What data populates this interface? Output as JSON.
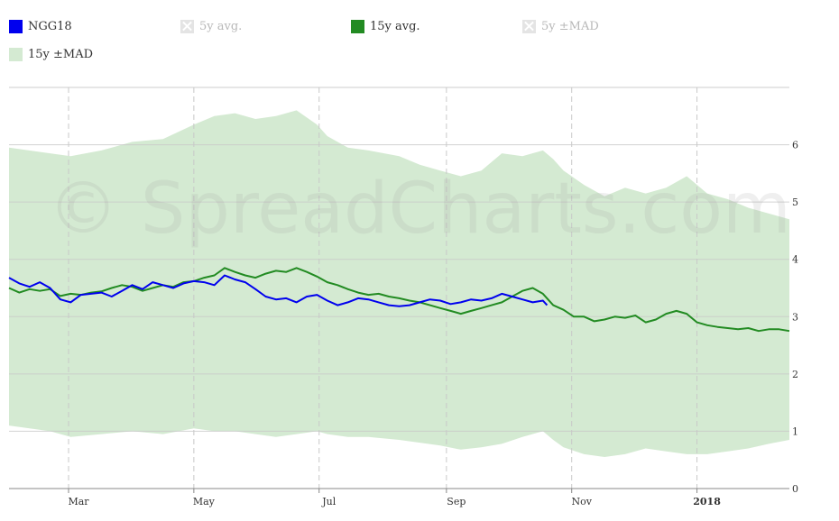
{
  "legend": [
    {
      "label": "NGG18",
      "color": "#0000ee",
      "enabled": true
    },
    {
      "label": "5y avg.",
      "color": "#c8c8c8",
      "enabled": false
    },
    {
      "label": "15y avg.",
      "color": "#228b22",
      "enabled": true
    },
    {
      "label": "5y ±MAD",
      "color": "#e4e4e4",
      "enabled": false
    },
    {
      "label": "15y ±MAD",
      "color": "#d4ead2",
      "enabled": true
    }
  ],
  "watermark": "© SpreadCharts.com",
  "chart_data": {
    "type": "line",
    "title": "",
    "xlabel": "",
    "ylabel": "",
    "ylim": [
      0,
      7
    ],
    "yticks": [
      0,
      1,
      2,
      3,
      4,
      5,
      6
    ],
    "x_range_days": [
      0,
      380
    ],
    "x_ticks": [
      {
        "label": "Mar",
        "day": 29,
        "bold": false
      },
      {
        "label": "May",
        "day": 90,
        "bold": false
      },
      {
        "label": "Jul",
        "day": 151,
        "bold": false
      },
      {
        "label": "Sep",
        "day": 213,
        "bold": false
      },
      {
        "label": "Nov",
        "day": 274,
        "bold": false
      },
      {
        "label": "2018",
        "day": 335,
        "bold": true
      }
    ],
    "series": [
      {
        "name": "15y ±MAD",
        "kind": "band",
        "color": "#d4ead2",
        "x": [
          0,
          20,
          30,
          45,
          60,
          75,
          90,
          100,
          110,
          120,
          130,
          140,
          150,
          155,
          165,
          175,
          190,
          200,
          210,
          220,
          230,
          240,
          250,
          260,
          265,
          270,
          280,
          290,
          300,
          310,
          320,
          330,
          340,
          350,
          360,
          370,
          380
        ],
        "upper": [
          5.95,
          5.85,
          5.8,
          5.9,
          6.05,
          6.1,
          6.35,
          6.5,
          6.55,
          6.45,
          6.5,
          6.6,
          6.35,
          6.15,
          5.95,
          5.9,
          5.8,
          5.65,
          5.55,
          5.45,
          5.55,
          5.85,
          5.8,
          5.9,
          5.75,
          5.55,
          5.3,
          5.1,
          5.25,
          5.15,
          5.25,
          5.45,
          5.15,
          5.05,
          4.9,
          4.8,
          4.7
        ],
        "lower": [
          1.1,
          1.0,
          0.9,
          0.95,
          1.0,
          0.95,
          1.05,
          1.0,
          1.0,
          0.95,
          0.9,
          0.95,
          1.0,
          0.95,
          0.9,
          0.9,
          0.85,
          0.8,
          0.75,
          0.68,
          0.72,
          0.78,
          0.9,
          1.0,
          0.85,
          0.72,
          0.6,
          0.55,
          0.6,
          0.7,
          0.65,
          0.6,
          0.6,
          0.65,
          0.7,
          0.78,
          0.85
        ]
      },
      {
        "name": "15y avg.",
        "kind": "line",
        "color": "#228b22",
        "x": [
          0,
          5,
          10,
          15,
          20,
          25,
          30,
          35,
          40,
          45,
          50,
          55,
          60,
          65,
          70,
          75,
          80,
          85,
          90,
          95,
          100,
          105,
          110,
          115,
          120,
          125,
          130,
          135,
          140,
          145,
          150,
          155,
          160,
          165,
          170,
          175,
          180,
          185,
          190,
          195,
          200,
          205,
          210,
          215,
          220,
          225,
          230,
          235,
          240,
          245,
          250,
          255,
          260,
          265,
          270,
          275,
          280,
          285,
          290,
          295,
          300,
          305,
          310,
          315,
          320,
          325,
          330,
          335,
          340,
          345,
          350,
          355,
          360,
          365,
          370,
          375,
          380
        ],
        "y": [
          3.5,
          3.42,
          3.48,
          3.45,
          3.48,
          3.36,
          3.4,
          3.38,
          3.42,
          3.44,
          3.5,
          3.55,
          3.52,
          3.45,
          3.5,
          3.55,
          3.52,
          3.6,
          3.62,
          3.68,
          3.72,
          3.85,
          3.78,
          3.72,
          3.68,
          3.75,
          3.8,
          3.78,
          3.85,
          3.78,
          3.7,
          3.6,
          3.55,
          3.48,
          3.42,
          3.38,
          3.4,
          3.35,
          3.32,
          3.28,
          3.25,
          3.2,
          3.15,
          3.1,
          3.05,
          3.1,
          3.15,
          3.2,
          3.25,
          3.35,
          3.45,
          3.5,
          3.4,
          3.2,
          3.12,
          3.0,
          3.0,
          2.92,
          2.95,
          3.0,
          2.98,
          3.02,
          2.9,
          2.95,
          3.05,
          3.1,
          3.05,
          2.9,
          2.85,
          2.82,
          2.8,
          2.78,
          2.8,
          2.75,
          2.78,
          2.78,
          2.75
        ]
      },
      {
        "name": "NGG18",
        "kind": "line",
        "color": "#0000ee",
        "x": [
          0,
          5,
          10,
          15,
          20,
          25,
          30,
          35,
          40,
          45,
          50,
          55,
          60,
          65,
          70,
          75,
          80,
          85,
          90,
          95,
          100,
          105,
          110,
          115,
          120,
          125,
          130,
          135,
          140,
          145,
          150,
          155,
          160,
          165,
          170,
          175,
          180,
          185,
          190,
          195,
          200,
          205,
          210,
          215,
          220,
          225,
          230,
          235,
          240,
          245,
          250,
          255,
          260,
          262
        ],
        "y": [
          3.68,
          3.58,
          3.52,
          3.6,
          3.5,
          3.3,
          3.25,
          3.38,
          3.4,
          3.42,
          3.35,
          3.45,
          3.55,
          3.48,
          3.6,
          3.55,
          3.5,
          3.58,
          3.62,
          3.6,
          3.55,
          3.72,
          3.65,
          3.6,
          3.48,
          3.35,
          3.3,
          3.32,
          3.25,
          3.35,
          3.38,
          3.28,
          3.2,
          3.25,
          3.32,
          3.3,
          3.25,
          3.2,
          3.18,
          3.2,
          3.25,
          3.3,
          3.28,
          3.22,
          3.25,
          3.3,
          3.28,
          3.32,
          3.4,
          3.35,
          3.3,
          3.25,
          3.28,
          3.2
        ]
      }
    ]
  }
}
